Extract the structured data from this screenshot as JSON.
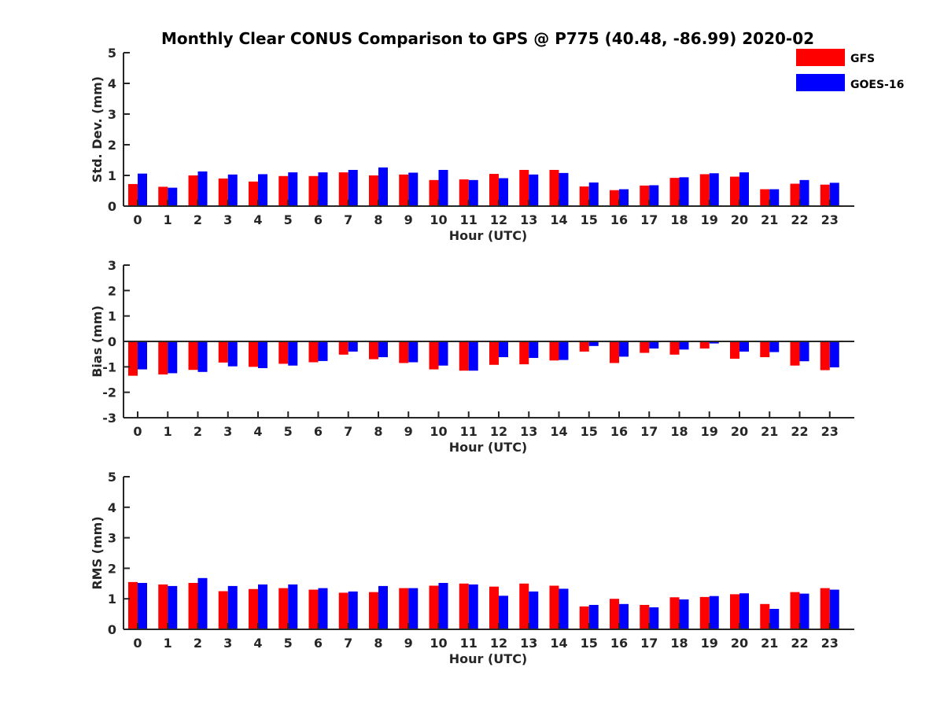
{
  "title": "Monthly Clear CONUS Comparison to GPS @ P775 (40.48, -86.99) 2020-02",
  "legend": [
    {
      "label": "GFS",
      "color": "#ff0000"
    },
    {
      "label": "GOES-16",
      "color": "#0000ff"
    }
  ],
  "chart_data": [
    {
      "type": "bar",
      "xlabel": "Hour (UTC)",
      "ylabel": "Std. Dev. (mm)",
      "ylim": [
        0,
        5
      ],
      "yticks": [
        "0",
        "1",
        "2",
        "3",
        "4",
        "5"
      ],
      "categories": [
        "0",
        "1",
        "2",
        "3",
        "4",
        "5",
        "6",
        "7",
        "8",
        "9",
        "10",
        "11",
        "12",
        "13",
        "14",
        "15",
        "16",
        "17",
        "18",
        "19",
        "20",
        "21",
        "22",
        "23"
      ],
      "series": [
        {
          "name": "GFS",
          "values": [
            0.72,
            0.63,
            1.0,
            0.9,
            0.8,
            0.98,
            0.98,
            1.1,
            1.0,
            1.03,
            0.85,
            0.87,
            1.05,
            1.18,
            1.18,
            0.64,
            0.52,
            0.67,
            0.92,
            1.04,
            0.96,
            0.55,
            0.73,
            0.7
          ]
        },
        {
          "name": "GOES-16",
          "values": [
            1.06,
            0.6,
            1.13,
            1.03,
            1.04,
            1.1,
            1.1,
            1.18,
            1.26,
            1.09,
            1.18,
            0.85,
            0.91,
            1.03,
            1.08,
            0.77,
            0.55,
            0.68,
            0.94,
            1.07,
            1.1,
            0.55,
            0.85,
            0.76
          ]
        }
      ]
    },
    {
      "type": "bar",
      "xlabel": "Hour (UTC)",
      "ylabel": "Bias (mm)",
      "ylim": [
        -3,
        3
      ],
      "yticks": [
        "-3",
        "-2",
        "-1",
        "0",
        "1",
        "2",
        "3"
      ],
      "categories": [
        "0",
        "1",
        "2",
        "3",
        "4",
        "5",
        "6",
        "7",
        "8",
        "9",
        "10",
        "11",
        "12",
        "13",
        "14",
        "15",
        "16",
        "17",
        "18",
        "19",
        "20",
        "21",
        "22",
        "23"
      ],
      "series": [
        {
          "name": "GFS",
          "values": [
            -1.35,
            -1.3,
            -1.12,
            -0.83,
            -1.0,
            -0.88,
            -0.82,
            -0.52,
            -0.7,
            -0.85,
            -1.1,
            -1.15,
            -0.92,
            -0.9,
            -0.75,
            -0.4,
            -0.85,
            -0.45,
            -0.52,
            -0.28,
            -0.68,
            -0.62,
            -0.95,
            -1.13
          ]
        },
        {
          "name": "GOES-16",
          "values": [
            -1.1,
            -1.25,
            -1.2,
            -0.98,
            -1.05,
            -0.95,
            -0.77,
            -0.4,
            -0.62,
            -0.82,
            -0.95,
            -1.15,
            -0.62,
            -0.65,
            -0.73,
            -0.18,
            -0.6,
            -0.28,
            -0.32,
            -0.08,
            -0.4,
            -0.42,
            -0.78,
            -1.02
          ]
        }
      ]
    },
    {
      "type": "bar",
      "xlabel": "Hour (UTC)",
      "ylabel": "RMS (mm)",
      "ylim": [
        0,
        5
      ],
      "yticks": [
        "0",
        "1",
        "2",
        "3",
        "4",
        "5"
      ],
      "categories": [
        "0",
        "1",
        "2",
        "3",
        "4",
        "5",
        "6",
        "7",
        "8",
        "9",
        "10",
        "11",
        "12",
        "13",
        "14",
        "15",
        "16",
        "17",
        "18",
        "19",
        "20",
        "21",
        "22",
        "23"
      ],
      "series": [
        {
          "name": "GFS",
          "values": [
            1.55,
            1.47,
            1.52,
            1.25,
            1.32,
            1.35,
            1.3,
            1.2,
            1.22,
            1.35,
            1.43,
            1.5,
            1.4,
            1.5,
            1.43,
            0.75,
            1.0,
            0.8,
            1.05,
            1.06,
            1.15,
            0.83,
            1.22,
            1.35
          ]
        },
        {
          "name": "GOES-16",
          "values": [
            1.52,
            1.42,
            1.68,
            1.42,
            1.47,
            1.47,
            1.35,
            1.24,
            1.42,
            1.35,
            1.52,
            1.47,
            1.1,
            1.24,
            1.33,
            0.8,
            0.83,
            0.72,
            0.98,
            1.09,
            1.18,
            0.67,
            1.17,
            1.3
          ]
        }
      ]
    }
  ]
}
